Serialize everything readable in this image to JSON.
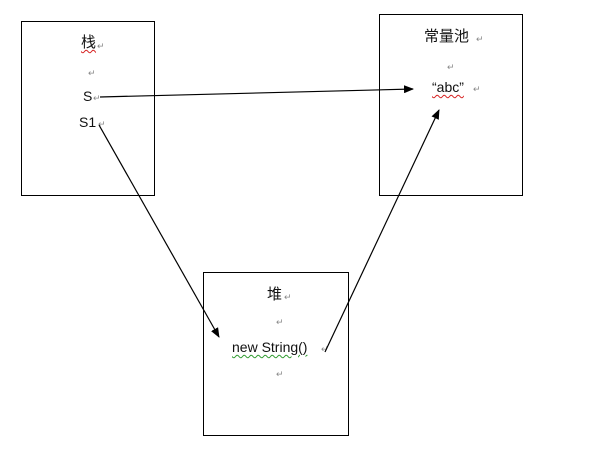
{
  "stack": {
    "title": "栈",
    "vars": [
      "S",
      "S1"
    ]
  },
  "pool": {
    "title": "常量池",
    "literal": "“abc”"
  },
  "heap": {
    "title": "堆",
    "object": "new String()"
  },
  "paragraph_mark": "↵",
  "colors": {
    "border": "#000000",
    "arrow": "#000000",
    "spell_squiggle": "#d62020",
    "grammar_squiggle": "#2e9a2e",
    "paragraph_mark": "#888888"
  }
}
